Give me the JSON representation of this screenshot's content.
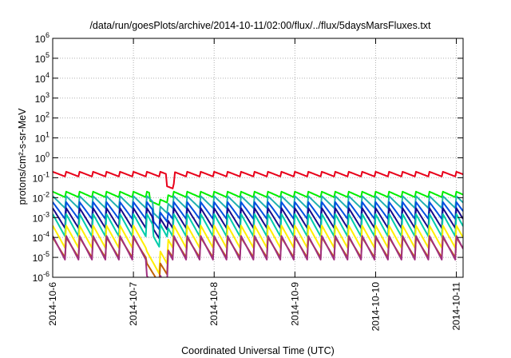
{
  "chart_data": {
    "type": "line",
    "title": "/data/run/goesPlots/archive/2014-10-11/02:00/flux/../flux/5daysMarsFluxes.txt",
    "xlabel": "Coordinated Universal Time (UTC)",
    "ylabel": "protons/cm²-s-sr-MeV",
    "x_scale": "time",
    "y_scale": "log",
    "xlim": [
      "2014-10-06T00:00",
      "2014-10-11T02:00"
    ],
    "ylim": [
      1e-06,
      1000000.0
    ],
    "x_ticks": [
      "2014-10-6",
      "2014-10-7",
      "2014-10-8",
      "2014-10-9",
      "2014-10-10",
      "2014-10-11"
    ],
    "y_tick_exponents": [
      -6,
      -5,
      -4,
      -3,
      -2,
      -1,
      0,
      1,
      2,
      3,
      4,
      5,
      6
    ],
    "grid": true,
    "legend": "none",
    "sawtooth_period_hours": 4,
    "series": [
      {
        "color": "#e8001a",
        "base": 0.2,
        "fall_ratio": 0.55,
        "events": [
          {
            "start": "2014-10-07T10:00",
            "end": "2014-10-07T12:00",
            "factor": 0.25
          }
        ]
      },
      {
        "color": "#00ee00",
        "base": 0.02,
        "fall_ratio": 0.5,
        "events": [
          {
            "start": "2014-10-07T05:00",
            "end": "2014-10-07T10:00",
            "factor": 0.4
          }
        ]
      },
      {
        "color": "#20b0b0",
        "base": 0.012,
        "fall_ratio": 0.22,
        "events": [
          {
            "start": "2014-10-07T06:00",
            "end": "2014-10-07T10:00",
            "factor": 0.3
          }
        ]
      },
      {
        "color": "#0050e0",
        "base": 0.006,
        "fall_ratio": 0.12,
        "events": [
          {
            "start": "2014-10-07T06:00",
            "end": "2014-10-07T10:00",
            "factor": 0.3
          }
        ]
      },
      {
        "color": "#1a0a8a",
        "base": 0.003,
        "fall_ratio": 0.08,
        "events": [
          {
            "start": "2014-10-07T06:00",
            "end": "2014-10-07T10:00",
            "factor": 0.3
          }
        ]
      },
      {
        "color": "#00ccaa",
        "base": 0.0015,
        "fall_ratio": 0.06,
        "events": [
          {
            "start": "2014-10-07T06:00",
            "end": "2014-10-07T10:00",
            "factor": 0.3
          }
        ]
      },
      {
        "color": "#ffee00",
        "base": 0.0004,
        "fall_ratio": 0.06,
        "events": [
          {
            "start": "2014-10-07T04:00",
            "end": "2014-10-07T10:00",
            "factor": 0.05
          }
        ]
      },
      {
        "color": "#c06000",
        "base": 0.0001,
        "fall_ratio": 0.08,
        "events": [
          {
            "start": "2014-10-07T04:00",
            "end": "2014-10-07T10:00",
            "factor": 0.05
          }
        ]
      },
      {
        "color": "#a03080",
        "base": 0.00012,
        "fall_ratio": 0.05,
        "events": [
          {
            "start": "2014-10-07T04:00",
            "end": "2014-10-07T10:00",
            "factor": 0.01
          }
        ]
      }
    ]
  }
}
